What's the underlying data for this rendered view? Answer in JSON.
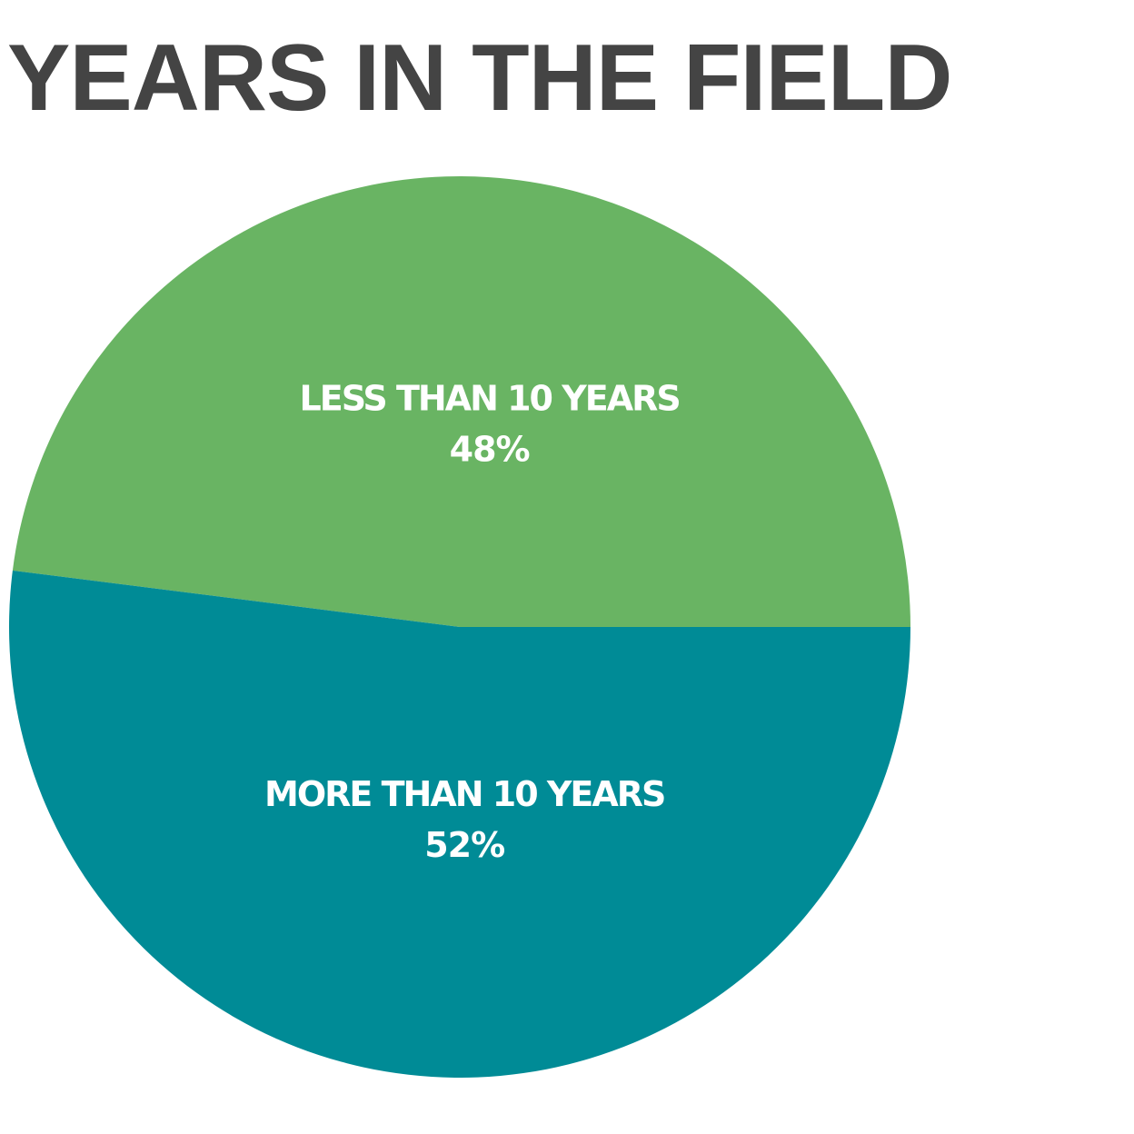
{
  "chart_data": {
    "type": "pie",
    "title": "YEARS IN THE FIELD",
    "slices": [
      {
        "label": "LESS THAN 10 YEARS",
        "value": 48,
        "value_label": "48%",
        "color": "#69b463"
      },
      {
        "label": "MORE THAN 10 YEARS",
        "value": 52,
        "value_label": "52%",
        "color": "#008b96"
      }
    ]
  }
}
